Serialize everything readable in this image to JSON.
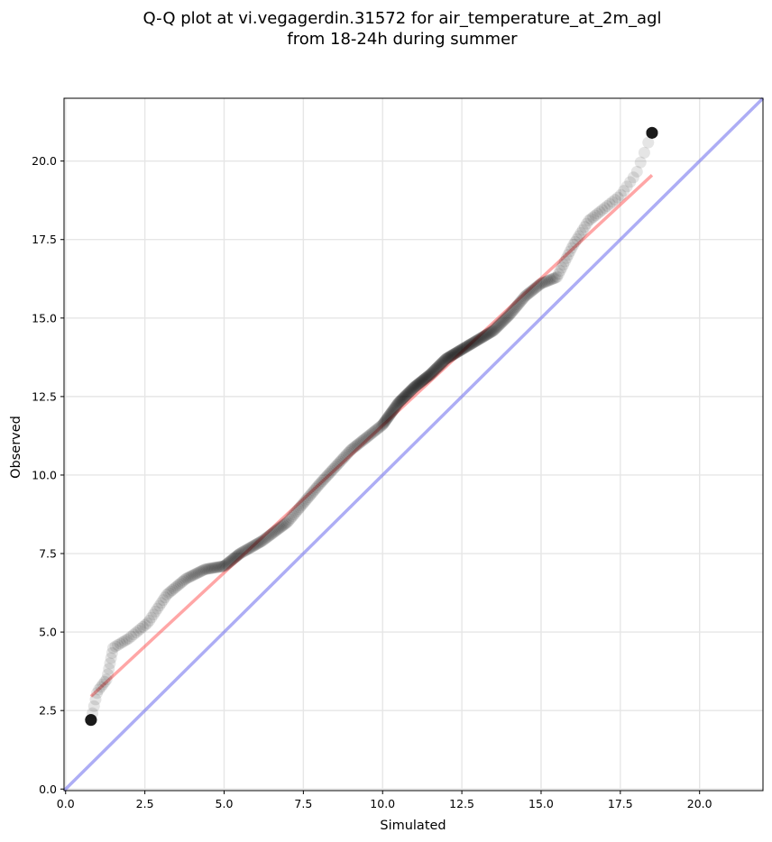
{
  "chart_data": {
    "type": "scatter",
    "title_lines": [
      "Q-Q plot at vi.vegagerdin.31572 for air_temperature_at_2m_agl",
      "from 18-24h during summer"
    ],
    "xlabel": "Simulated",
    "ylabel": "Observed",
    "xlim": [
      -0.05,
      22.0
    ],
    "ylim": [
      -0.05,
      22.0
    ],
    "xticks": [
      0.0,
      2.5,
      5.0,
      7.5,
      10.0,
      12.5,
      15.0,
      17.5,
      20.0
    ],
    "yticks": [
      0.0,
      2.5,
      5.0,
      7.5,
      10.0,
      12.5,
      15.0,
      17.5,
      20.0
    ],
    "grid": true,
    "colors": {
      "points": "#000000",
      "fit_line": "#ff4d4d",
      "identity_line": "#7777ee",
      "grid": "#e6e6e6"
    },
    "fit_line": {
      "x": [
        0.8,
        18.5
      ],
      "y": [
        2.95,
        19.55
      ]
    },
    "identity_line": {
      "x": [
        -0.05,
        22.0
      ],
      "y": [
        -0.05,
        22.0
      ]
    },
    "anchors": {
      "x": [
        0.8,
        1.0,
        1.3,
        1.5,
        2.0,
        2.6,
        3.2,
        3.8,
        4.4,
        5.0,
        5.5,
        6.2,
        7.0,
        8.0,
        9.0,
        10.0,
        10.5,
        11.0,
        11.5,
        12.0,
        12.5,
        13.0,
        13.5,
        14.0,
        14.5,
        15.0,
        15.5,
        16.0,
        16.5,
        17.0,
        17.5,
        18.0,
        18.5
      ],
      "y": [
        2.2,
        3.1,
        3.5,
        4.5,
        4.8,
        5.3,
        6.2,
        6.7,
        7.0,
        7.1,
        7.5,
        7.9,
        8.5,
        9.7,
        10.8,
        11.6,
        12.3,
        12.8,
        13.2,
        13.7,
        14.0,
        14.3,
        14.6,
        15.1,
        15.7,
        16.1,
        16.3,
        17.3,
        18.1,
        18.5,
        18.9,
        19.6,
        20.9
      ]
    },
    "n_points": 500
  }
}
